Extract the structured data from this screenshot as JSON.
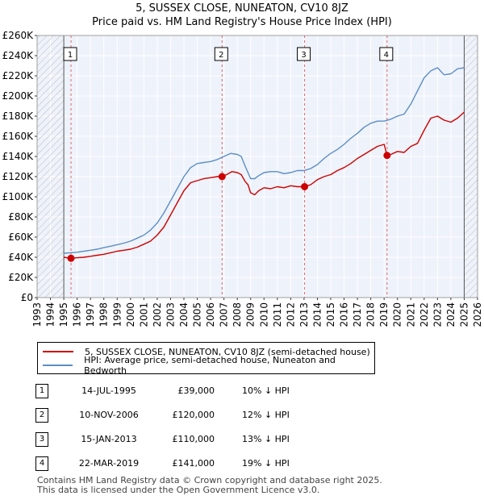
{
  "title": "5, SUSSEX CLOSE, NUNEATON, CV10 8JZ",
  "subtitle": "Price paid vs. HM Land Registry's House Price Index (HPI)",
  "chart_data": {
    "type": "line",
    "xlim": [
      1993,
      2026
    ],
    "ylim": [
      0,
      260000
    ],
    "x_ticks": [
      1993,
      1994,
      1995,
      1996,
      1997,
      1998,
      1999,
      2000,
      2001,
      2002,
      2003,
      2004,
      2005,
      2006,
      2007,
      2008,
      2009,
      2010,
      2011,
      2012,
      2013,
      2014,
      2015,
      2016,
      2017,
      2018,
      2019,
      2020,
      2021,
      2022,
      2023,
      2024,
      2025,
      2026
    ],
    "y_ticks": [
      {
        "value": 0,
        "label": "£0"
      },
      {
        "value": 20000,
        "label": "£20K"
      },
      {
        "value": 40000,
        "label": "£40K"
      },
      {
        "value": 60000,
        "label": "£60K"
      },
      {
        "value": 80000,
        "label": "£80K"
      },
      {
        "value": 100000,
        "label": "£100K"
      },
      {
        "value": 120000,
        "label": "£120K"
      },
      {
        "value": 140000,
        "label": "£140K"
      },
      {
        "value": 160000,
        "label": "£160K"
      },
      {
        "value": 180000,
        "label": "£180K"
      },
      {
        "value": 200000,
        "label": "£200K"
      },
      {
        "value": 220000,
        "label": "£220K"
      },
      {
        "value": 240000,
        "label": "£240K"
      },
      {
        "value": 260000,
        "label": "£260K"
      }
    ],
    "hatched_before": 1995.0,
    "hatched_after": 2025.0,
    "series": [
      {
        "name": "5, SUSSEX CLOSE, NUNEATON, CV10 8JZ (semi-detached house)",
        "color": "#cc0000",
        "x": [
          1995.0,
          1995.54,
          1996.0,
          1996.5,
          1997.0,
          1997.5,
          1998.0,
          1998.5,
          1999.0,
          1999.5,
          2000.0,
          2000.5,
          2001.0,
          2001.5,
          2002.0,
          2002.5,
          2003.0,
          2003.5,
          2004.0,
          2004.5,
          2005.0,
          2005.5,
          2006.0,
          2006.5,
          2006.86,
          2007.2,
          2007.6,
          2008.0,
          2008.3,
          2008.6,
          2008.8,
          2009.0,
          2009.3,
          2009.6,
          2010.0,
          2010.5,
          2011.0,
          2011.5,
          2012.0,
          2012.5,
          2013.04,
          2013.5,
          2014.0,
          2014.5,
          2015.0,
          2015.5,
          2016.0,
          2016.5,
          2017.0,
          2017.5,
          2018.0,
          2018.5,
          2019.0,
          2019.22,
          2019.5,
          2020.0,
          2020.5,
          2021.0,
          2021.5,
          2022.0,
          2022.5,
          2023.0,
          2023.5,
          2024.0,
          2024.5,
          2025.0
        ],
        "y": [
          40000,
          39000,
          39500,
          40000,
          41000,
          42000,
          43000,
          44500,
          46000,
          47000,
          48000,
          50000,
          53000,
          56000,
          62000,
          70000,
          82000,
          94000,
          106000,
          114000,
          116000,
          118000,
          119000,
          120000,
          120000,
          122000,
          125000,
          124000,
          122000,
          115000,
          112000,
          104000,
          102000,
          106000,
          109000,
          108000,
          110000,
          109000,
          111000,
          110000,
          110000,
          112000,
          117000,
          120000,
          122000,
          126000,
          129000,
          133000,
          138000,
          142000,
          146000,
          150000,
          152000,
          141000,
          142000,
          145000,
          144000,
          150000,
          153000,
          166000,
          178000,
          180000,
          176000,
          174000,
          178000,
          184000
        ]
      },
      {
        "name": "HPI: Average price, semi-detached house, Nuneaton and Bedworth",
        "color": "#5b8ec4",
        "x": [
          1995.0,
          1995.5,
          1996.0,
          1996.5,
          1997.0,
          1997.5,
          1998.0,
          1998.5,
          1999.0,
          1999.5,
          2000.0,
          2000.5,
          2001.0,
          2001.5,
          2002.0,
          2002.5,
          2003.0,
          2003.5,
          2004.0,
          2004.5,
          2005.0,
          2005.5,
          2006.0,
          2006.5,
          2007.0,
          2007.5,
          2008.0,
          2008.3,
          2008.6,
          2008.8,
          2009.0,
          2009.3,
          2009.6,
          2010.0,
          2010.5,
          2011.0,
          2011.5,
          2012.0,
          2012.5,
          2013.0,
          2013.5,
          2014.0,
          2014.5,
          2015.0,
          2015.5,
          2016.0,
          2016.5,
          2017.0,
          2017.5,
          2018.0,
          2018.5,
          2019.0,
          2019.5,
          2020.0,
          2020.5,
          2021.0,
          2021.5,
          2022.0,
          2022.5,
          2023.0,
          2023.5,
          2024.0,
          2024.5,
          2025.0
        ],
        "y": [
          44000,
          44500,
          45000,
          46000,
          47000,
          48000,
          49500,
          51000,
          52500,
          54000,
          56000,
          59000,
          62000,
          67000,
          74000,
          84000,
          96000,
          108000,
          120000,
          129000,
          133000,
          134000,
          135000,
          137000,
          140000,
          143000,
          142000,
          140000,
          130000,
          124000,
          118000,
          118000,
          121000,
          124000,
          125000,
          125000,
          123000,
          124000,
          126000,
          126000,
          128000,
          132000,
          138000,
          143000,
          147000,
          152000,
          158000,
          163000,
          169000,
          173000,
          175000,
          175000,
          177000,
          180000,
          182000,
          192000,
          205000,
          218000,
          225000,
          228000,
          221000,
          222000,
          227000,
          228000
        ]
      }
    ],
    "sales": [
      {
        "marker": "1",
        "x": 1995.54,
        "price": 39000
      },
      {
        "marker": "2",
        "x": 2006.86,
        "price": 120000
      },
      {
        "marker": "3",
        "x": 2013.04,
        "price": 110000
      },
      {
        "marker": "4",
        "x": 2019.22,
        "price": 141000
      }
    ]
  },
  "legend": {
    "items": [
      {
        "label": "5, SUSSEX CLOSE, NUNEATON, CV10 8JZ (semi-detached house)",
        "color": "#cc0000"
      },
      {
        "label": "HPI: Average price, semi-detached house, Nuneaton and Bedworth",
        "color": "#5b8ec4"
      }
    ]
  },
  "sales_table": [
    {
      "marker": "1",
      "date": "14-JUL-1995",
      "price": "£39,000",
      "hpi": "10% ↓ HPI"
    },
    {
      "marker": "2",
      "date": "10-NOV-2006",
      "price": "£120,000",
      "hpi": "12% ↓ HPI"
    },
    {
      "marker": "3",
      "date": "15-JAN-2013",
      "price": "£110,000",
      "hpi": "13% ↓ HPI"
    },
    {
      "marker": "4",
      "date": "22-MAR-2019",
      "price": "£141,000",
      "hpi": "19% ↓ HPI"
    }
  ],
  "footer": {
    "line1": "Contains HM Land Registry data © Crown copyright and database right 2025.",
    "line2": "This data is licensed under the Open Government Licence v3.0."
  }
}
